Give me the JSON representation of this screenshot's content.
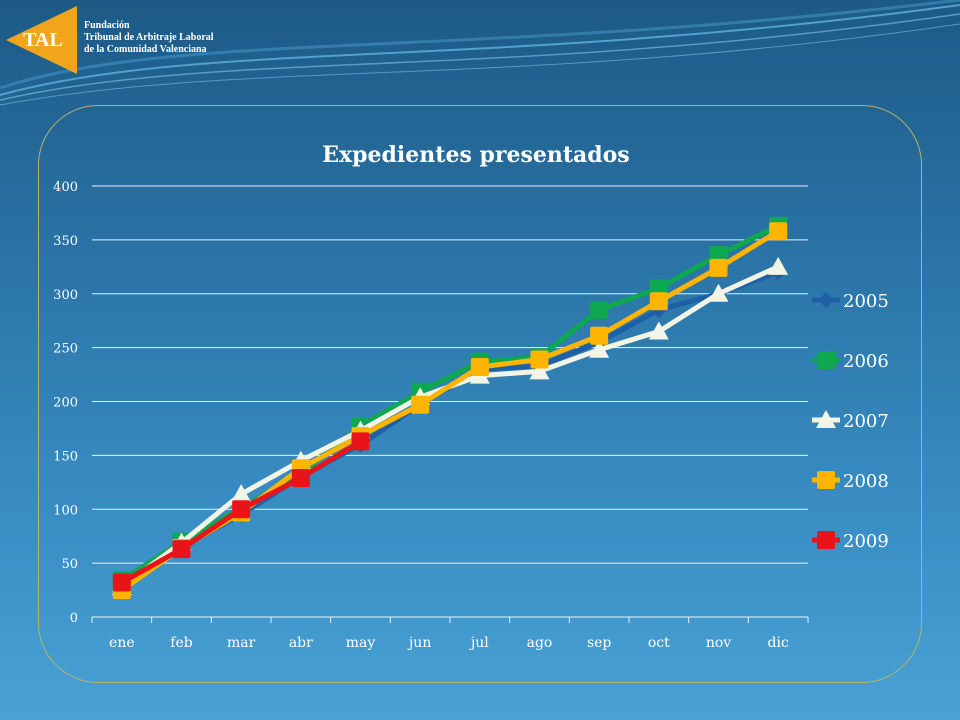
{
  "organization": {
    "logo_text": "TAL",
    "lines": [
      "Fundación",
      "Tribunal de Arbitraje Laboral",
      "de la Comunidad Valenciana"
    ]
  },
  "colors": {
    "logo_orange": "#f2a51c",
    "2005": "#1f5fa6",
    "2006": "#0da84f",
    "2007": "#f2f4e6",
    "2008": "#ffb500",
    "2009": "#e8141a",
    "grid": "#e8f2f8"
  },
  "chart_data": {
    "type": "line",
    "title": "Expedientes presentados",
    "categories": [
      "ene",
      "feb",
      "mar",
      "abr",
      "may",
      "jun",
      "jul",
      "ago",
      "sep",
      "oct",
      "nov",
      "dic"
    ],
    "ylim": [
      0,
      400
    ],
    "yticks": [
      0,
      50,
      100,
      150,
      200,
      250,
      300,
      350,
      400
    ],
    "grid": true,
    "legend_position": "right",
    "series": [
      {
        "name": "2005",
        "marker": "diamond",
        "values": [
          33,
          65,
          95,
          130,
          160,
          197,
          230,
          233,
          255,
          285,
          300,
          320
        ]
      },
      {
        "name": "2006",
        "marker": "square",
        "values": [
          34,
          70,
          101,
          133,
          177,
          209,
          237,
          241,
          285,
          305,
          336,
          363
        ]
      },
      {
        "name": "2007",
        "marker": "triangle",
        "values": [
          28,
          69,
          114,
          145,
          173,
          204,
          224,
          228,
          248,
          265,
          300,
          325
        ]
      },
      {
        "name": "2008",
        "marker": "square",
        "values": [
          25,
          64,
          97,
          138,
          168,
          197,
          232,
          239,
          261,
          293,
          324,
          358
        ]
      },
      {
        "name": "2009",
        "marker": "square",
        "values": [
          32,
          63,
          100,
          129,
          163,
          null,
          null,
          null,
          null,
          null,
          null,
          null
        ]
      }
    ]
  }
}
